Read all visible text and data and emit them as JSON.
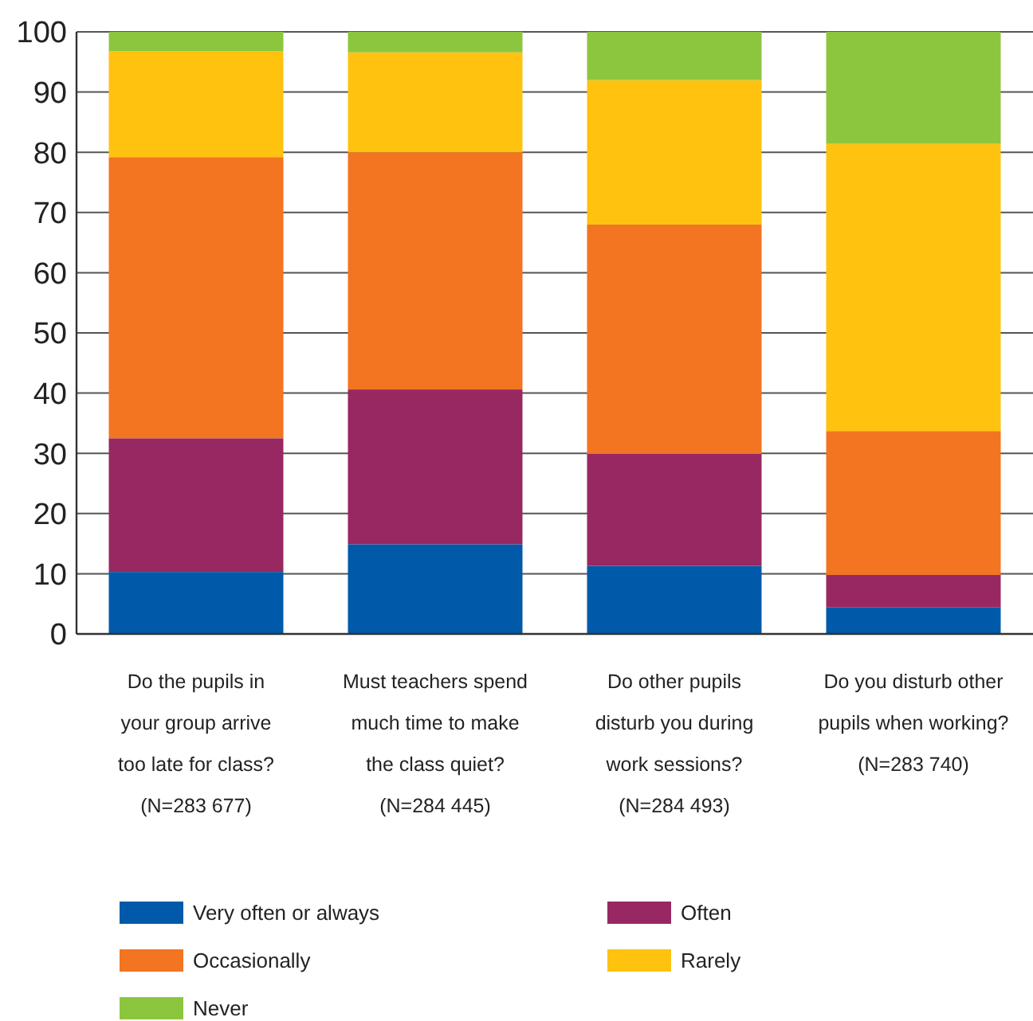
{
  "chart_data": {
    "type": "bar",
    "stacked": true,
    "categories": [
      "Do the pupils in your group arrive too late for class? (N=283 677)",
      "Must teachers spend much time to make the class quiet? (N=284 445)",
      "Do other pupils disturb you during work sessions? (N=284 493)",
      "Do you disturb other pupils when working? (N=283 740)"
    ],
    "series": [
      {
        "name": "Very often or always",
        "color": "#005aa9",
        "values": [
          10.3,
          14.9,
          11.3,
          4.4
        ]
      },
      {
        "name": "Often",
        "color": "#982862",
        "values": [
          22.2,
          25.7,
          18.6,
          5.4
        ]
      },
      {
        "name": "Occasionally",
        "color": "#f37421",
        "values": [
          46.7,
          39.4,
          38.1,
          23.9
        ]
      },
      {
        "name": "Rarely",
        "color": "#ffc20e",
        "values": [
          17.6,
          16.6,
          24.0,
          47.7
        ]
      },
      {
        "name": "Never",
        "color": "#8cc63f",
        "values": [
          3.2,
          3.4,
          8.0,
          18.6
        ]
      }
    ],
    "ylim": [
      0,
      100
    ],
    "yticks": [
      0,
      10,
      20,
      30,
      40,
      50,
      60,
      70,
      80,
      90,
      100
    ],
    "grid": "y",
    "legend": "bottom"
  }
}
